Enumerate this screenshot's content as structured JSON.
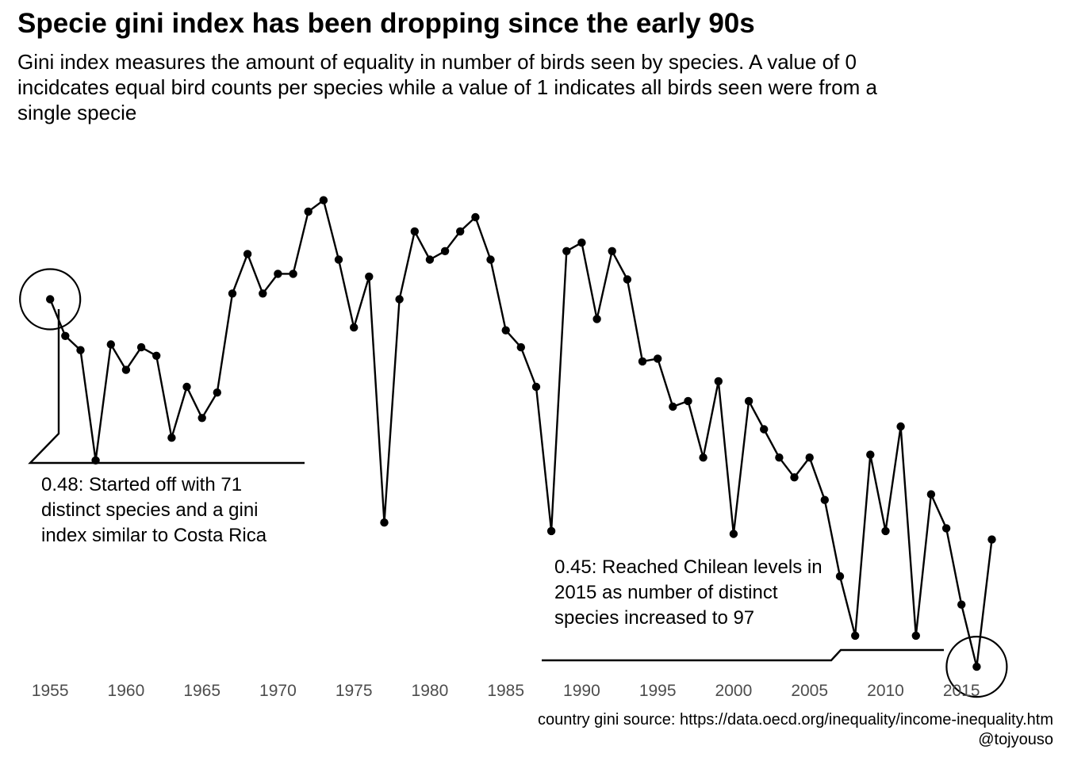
{
  "title": "Specie gini index has been dropping since the early 90s",
  "subtitle": "Gini index measures the amount of equality in number of birds seen by species. A value of 0 incidcates equal bird counts per species while a value of 1 indicates all birds seen were from a single specie",
  "caption": {
    "source": "country gini source: https://data.oecd.org/inequality/income-inequality.htm",
    "author": "@tojyouso"
  },
  "chart_data": {
    "type": "line",
    "title": "Specie gini index has been dropping since the early 90s",
    "xlabel": "",
    "ylabel": "",
    "x_ticks": [
      1955,
      1960,
      1965,
      1970,
      1975,
      1980,
      1985,
      1990,
      1995,
      2000,
      2005,
      2010,
      2015
    ],
    "x_range": [
      1954,
      2017.6
    ],
    "y_range": [
      0.372,
      0.552
    ],
    "grid": false,
    "legend": "none",
    "y_axis_shown": false,
    "series": [
      {
        "x": [
          1955,
          1956,
          1957,
          1958,
          1959,
          1960,
          1961,
          1962,
          1963,
          1964,
          1965,
          1966,
          1967,
          1968,
          1969,
          1970,
          1971,
          1972,
          1973,
          1974,
          1975,
          1976,
          1977,
          1978,
          1979,
          1980,
          1981,
          1982,
          1983,
          1984,
          1985,
          1986,
          1987,
          1988,
          1989,
          1990,
          1991,
          1992,
          1993,
          1994,
          1995,
          1996,
          1997,
          1998,
          1999,
          2000,
          2001,
          2002,
          2003,
          2004,
          2005,
          2006,
          2007,
          2008,
          2009,
          2010,
          2011,
          2012,
          2013,
          2014,
          2015,
          2016,
          2017
        ],
        "values": [
          0.5,
          0.487,
          0.482,
          0.443,
          0.484,
          0.475,
          0.483,
          0.48,
          0.451,
          0.469,
          0.458,
          0.467,
          0.502,
          0.516,
          0.502,
          0.509,
          0.509,
          0.531,
          0.535,
          0.514,
          0.49,
          0.508,
          0.421,
          0.5,
          0.524,
          0.514,
          0.517,
          0.524,
          0.529,
          0.514,
          0.489,
          0.483,
          0.469,
          0.418,
          0.517,
          0.52,
          0.493,
          0.517,
          0.507,
          0.478,
          0.479,
          0.462,
          0.464,
          0.444,
          0.471,
          0.417,
          0.464,
          0.454,
          0.444,
          0.437,
          0.444,
          0.429,
          0.402,
          0.381,
          0.445,
          0.418,
          0.455,
          0.381,
          0.431,
          0.419,
          0.392,
          0.37,
          0.415
        ]
      }
    ],
    "annotations": [
      {
        "text": "0.48: Started off with 71 distinct species and a gini index similar to Costa Rica",
        "x": 1955
      },
      {
        "text": "0.45: Reached Chilean levels in 2015 as number of distinct species increased to 97",
        "x": 2016
      }
    ],
    "highlighted_points": [
      1955,
      2016
    ],
    "line_color": "#000000",
    "point_color": "#000000",
    "tick_color": "#4d4d4d"
  }
}
